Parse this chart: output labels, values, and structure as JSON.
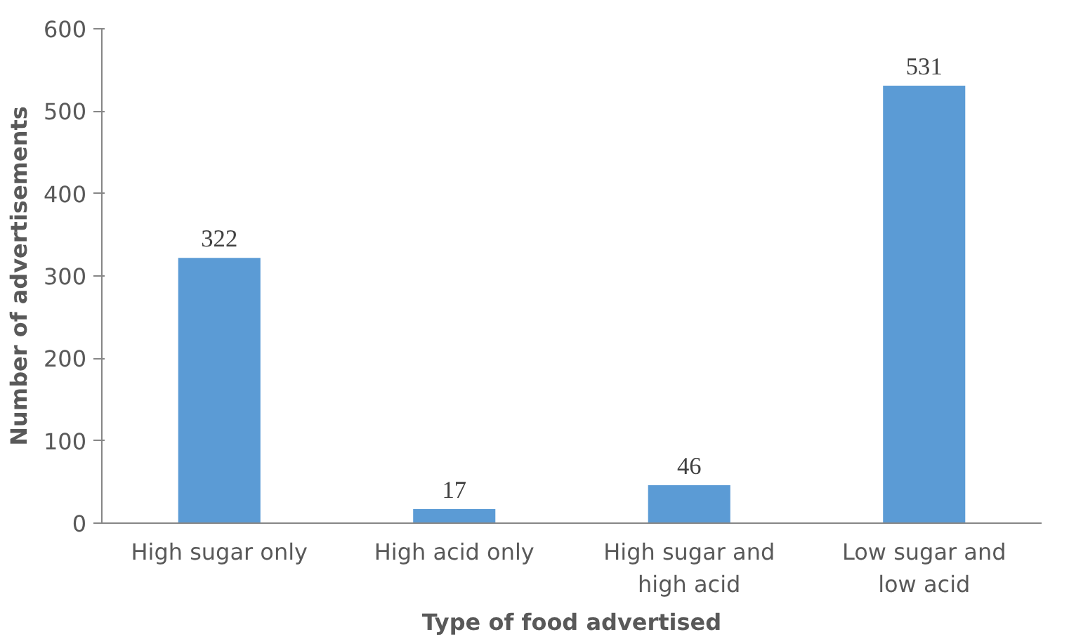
{
  "chart_data": {
    "type": "bar",
    "xlabel": "Type of food advertised",
    "ylabel": "Number of advertisements",
    "categories": [
      "High sugar only",
      "High acid only",
      "High sugar and\nhigh acid",
      "Low sugar and\nlow acid"
    ],
    "values": [
      322,
      17,
      46,
      531
    ],
    "color": "#5b9bd5",
    "ylim": [
      0,
      600
    ],
    "yticks": [
      0,
      100,
      200,
      300,
      400,
      500,
      600
    ],
    "grid": false,
    "data_labels": true
  }
}
